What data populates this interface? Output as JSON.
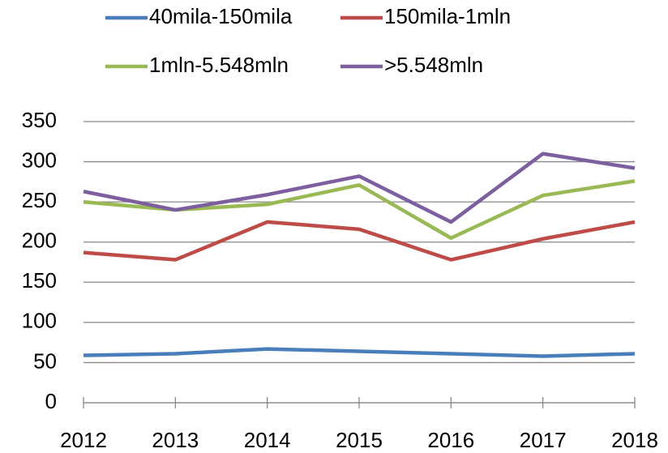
{
  "chart_data": {
    "type": "line",
    "categories": [
      "2012",
      "2013",
      "2014",
      "2015",
      "2016",
      "2017",
      "2018"
    ],
    "series": [
      {
        "name": "40mila-150mila",
        "color": "#4a7ebb",
        "values": [
          59,
          61,
          67,
          64,
          61,
          58,
          61
        ]
      },
      {
        "name": "150mila-1mln",
        "color": "#be4b48",
        "values": [
          187,
          178,
          225,
          216,
          178,
          204,
          225
        ]
      },
      {
        "name": "1mln-5.548mln",
        "color": "#98b954",
        "values": [
          250,
          240,
          247,
          271,
          205,
          258,
          276
        ]
      },
      {
        "name": ">5.548mln",
        "color": "#7d5fa0",
        "values": [
          263,
          240,
          259,
          282,
          225,
          310,
          292
        ]
      }
    ],
    "ylim": [
      0,
      350
    ],
    "yticks": [
      0,
      50,
      100,
      150,
      200,
      250,
      300,
      350
    ],
    "grid": true,
    "legend": "top"
  }
}
